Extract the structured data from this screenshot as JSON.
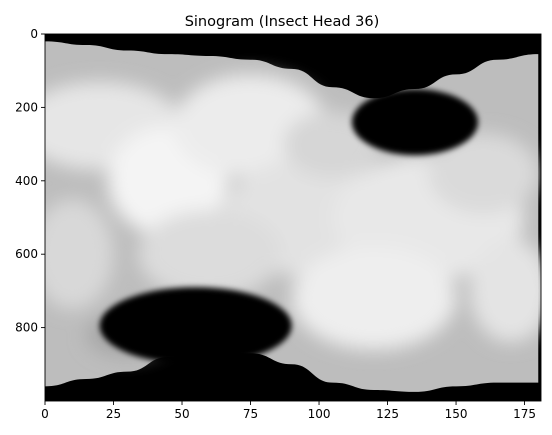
{
  "chart_data": {
    "type": "heatmap",
    "title": "Sinogram (Insect Head 36)",
    "xlabel": "",
    "ylabel": "",
    "colormap": "gray",
    "x_extent": [
      0,
      181
    ],
    "y_extent": [
      1000,
      0
    ],
    "xlim": [
      0,
      181
    ],
    "ylim": [
      1000,
      0
    ],
    "y_inverted": true,
    "grid": false,
    "x_ticks": [
      0,
      25,
      50,
      75,
      100,
      125,
      150,
      175
    ],
    "y_ticks": [
      0,
      200,
      400,
      600,
      800
    ],
    "object_boundary": {
      "angles": [
        0,
        15,
        30,
        45,
        60,
        75,
        90,
        105,
        120,
        135,
        150,
        165,
        180
      ],
      "top_edge_row": [
        20,
        30,
        45,
        55,
        60,
        70,
        95,
        145,
        175,
        150,
        110,
        70,
        55
      ],
      "bottom_edge_row": [
        960,
        940,
        920,
        880,
        860,
        870,
        900,
        950,
        970,
        975,
        960,
        950,
        950
      ]
    },
    "dark_regions": [
      {
        "label": "upper-right void",
        "angle_range": [
          112,
          158
        ],
        "row_range": [
          150,
          330
        ]
      },
      {
        "label": "lower-left void",
        "angle_range": [
          20,
          90
        ],
        "row_range": [
          690,
          900
        ]
      }
    ]
  }
}
